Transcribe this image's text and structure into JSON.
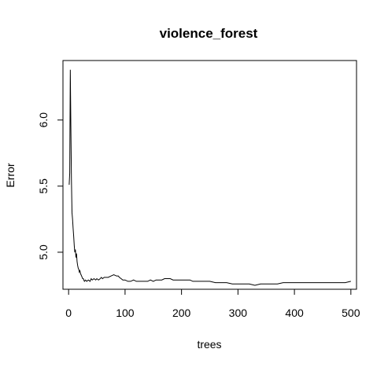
{
  "chart_data": {
    "type": "line",
    "title": "violence_forest",
    "xlabel": "trees",
    "ylabel": "Error",
    "xlim": [
      -10,
      510
    ],
    "ylim": [
      4.72,
      6.45
    ],
    "xticks": [
      0,
      100,
      200,
      300,
      400,
      500
    ],
    "yticks": [
      5.0,
      5.5,
      6.0
    ],
    "xtick_labels": [
      "0",
      "100",
      "200",
      "300",
      "400",
      "500"
    ],
    "ytick_labels": [
      "5.0",
      "5.5",
      "6.0"
    ],
    "grid": false,
    "legend": "none",
    "line_color": "#000000",
    "series": [
      {
        "x": [
          1,
          2,
          3,
          4,
          5,
          6,
          7,
          8,
          9,
          10,
          11,
          12,
          13,
          14,
          15,
          16,
          17,
          18,
          19,
          20,
          21,
          22,
          23,
          24,
          25,
          26,
          28,
          30,
          32,
          35,
          38,
          40,
          42,
          45,
          48,
          50,
          53,
          56,
          58,
          60,
          63,
          66,
          70,
          75,
          80,
          85,
          88,
          90,
          93,
          96,
          100,
          105,
          110,
          115,
          120,
          125,
          130,
          135,
          140,
          145,
          150,
          155,
          160,
          165,
          170,
          175,
          180,
          185,
          190,
          195,
          200,
          205,
          210,
          215,
          220,
          225,
          230,
          240,
          250,
          260,
          270,
          280,
          290,
          300,
          310,
          320,
          330,
          340,
          350,
          360,
          370,
          380,
          390,
          400,
          410,
          420,
          430,
          440,
          450,
          460,
          470,
          480,
          490,
          500
        ],
        "y": [
          5.51,
          5.6,
          6.38,
          5.95,
          5.55,
          5.3,
          5.25,
          5.18,
          5.12,
          5.05,
          5.0,
          5.02,
          4.96,
          4.99,
          4.93,
          4.9,
          4.88,
          4.87,
          4.85,
          4.86,
          4.84,
          4.83,
          4.82,
          4.81,
          4.8,
          4.8,
          4.78,
          4.79,
          4.78,
          4.79,
          4.78,
          4.8,
          4.79,
          4.8,
          4.79,
          4.8,
          4.79,
          4.8,
          4.81,
          4.8,
          4.81,
          4.81,
          4.81,
          4.82,
          4.83,
          4.82,
          4.82,
          4.81,
          4.8,
          4.79,
          4.79,
          4.78,
          4.78,
          4.79,
          4.78,
          4.78,
          4.78,
          4.78,
          4.78,
          4.79,
          4.78,
          4.79,
          4.79,
          4.79,
          4.8,
          4.8,
          4.8,
          4.79,
          4.79,
          4.79,
          4.79,
          4.79,
          4.79,
          4.79,
          4.78,
          4.78,
          4.78,
          4.78,
          4.78,
          4.77,
          4.77,
          4.77,
          4.76,
          4.76,
          4.76,
          4.76,
          4.75,
          4.76,
          4.76,
          4.76,
          4.76,
          4.77,
          4.77,
          4.77,
          4.77,
          4.77,
          4.77,
          4.77,
          4.77,
          4.77,
          4.77,
          4.77,
          4.77,
          4.78
        ]
      }
    ]
  }
}
